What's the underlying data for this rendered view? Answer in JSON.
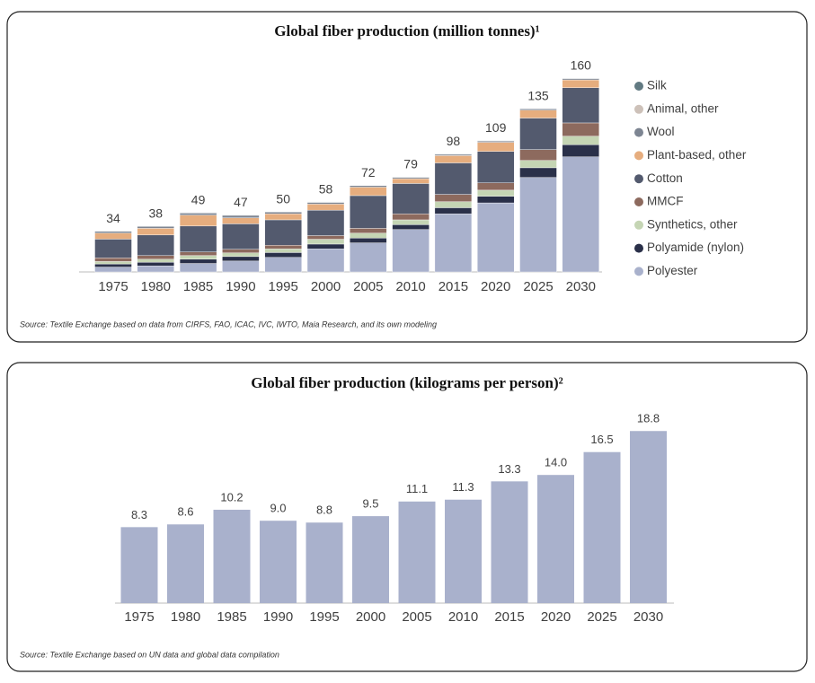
{
  "chart_data": [
    {
      "type": "bar",
      "stacked": true,
      "title": "Global fiber production (million tonnes)¹",
      "source": "Source: Textile Exchange based on data from CIRFS, FAO, ICAC, IVC, IWTO, Maia Research, and its own modeling",
      "categories": [
        "1975",
        "1980",
        "1985",
        "1990",
        "1995",
        "2000",
        "2005",
        "2010",
        "2015",
        "2020",
        "2025",
        "2030"
      ],
      "totals": [
        34,
        38,
        49,
        47,
        50,
        58,
        72,
        79,
        98,
        109,
        135,
        160
      ],
      "ylim": [
        0,
        160
      ],
      "series": [
        {
          "name": "Polyester",
          "color": "#a9b1cc",
          "values": [
            4,
            5,
            7,
            9,
            12,
            19,
            24,
            35,
            48,
            57,
            78,
            95
          ]
        },
        {
          "name": "Polyamide (nylon)",
          "color": "#2a3049",
          "values": [
            2.6,
            3,
            3.5,
            3.7,
            4,
            4,
            4,
            4,
            5,
            5.5,
            8,
            10
          ]
        },
        {
          "name": "Synthetics, other",
          "color": "#c5d5b4",
          "values": [
            2,
            2.5,
            3,
            3,
            3,
            4,
            4,
            4,
            5,
            5,
            6,
            7
          ]
        },
        {
          "name": "MMCF",
          "color": "#8d6a5e",
          "values": [
            3,
            3,
            3,
            3,
            3,
            3,
            4,
            5,
            6,
            6,
            9,
            11
          ]
        },
        {
          "name": "Cotton",
          "color": "#535a6e",
          "values": [
            15.5,
            17,
            21.4,
            21,
            21,
            21,
            27,
            25,
            26,
            26,
            26,
            29
          ]
        },
        {
          "name": "Plant-based, other",
          "color": "#e6ad7e",
          "values": [
            5,
            5.5,
            9,
            5,
            5,
            5,
            7,
            4,
            6,
            7.5,
            6.5,
            6.5
          ]
        },
        {
          "name": "Wool",
          "color": "#7d8592",
          "values": [
            1.5,
            1.6,
            1.7,
            2,
            1.5,
            1.4,
            1.3,
            1.1,
            1.1,
            1.1,
            1.1,
            1.1
          ]
        },
        {
          "name": "Animal, other",
          "color": "#cdc1b9",
          "values": [
            0.2,
            0.2,
            0.2,
            0.2,
            0.2,
            0.2,
            0.2,
            0.2,
            0.2,
            0.2,
            0.2,
            0.2
          ]
        },
        {
          "name": "Silk",
          "color": "#627a82",
          "values": [
            0.2,
            0.2,
            0.2,
            0.2,
            0.2,
            0.2,
            0.2,
            0.2,
            0.2,
            0.2,
            0.2,
            0.2
          ]
        }
      ]
    },
    {
      "type": "bar",
      "title": "Global fiber production (kilograms per person)²",
      "source": "Source: Textile Exchange based on UN data and global data compilation",
      "categories": [
        "1975",
        "1980",
        "1985",
        "1990",
        "1995",
        "2000",
        "2005",
        "2010",
        "2015",
        "2020",
        "2025",
        "2030"
      ],
      "values": [
        8.3,
        8.6,
        10.2,
        9.0,
        8.8,
        9.5,
        11.1,
        11.3,
        13.3,
        14.0,
        16.5,
        18.8
      ],
      "value_labels": [
        "8.3",
        "8.6",
        "10.2",
        "9.0",
        "8.8",
        "9.5",
        "11.1",
        "11.3",
        "13.3",
        "14.0",
        "16.5",
        "18.8"
      ],
      "color": "#a9b1cc",
      "ylim": [
        0,
        20
      ]
    }
  ]
}
